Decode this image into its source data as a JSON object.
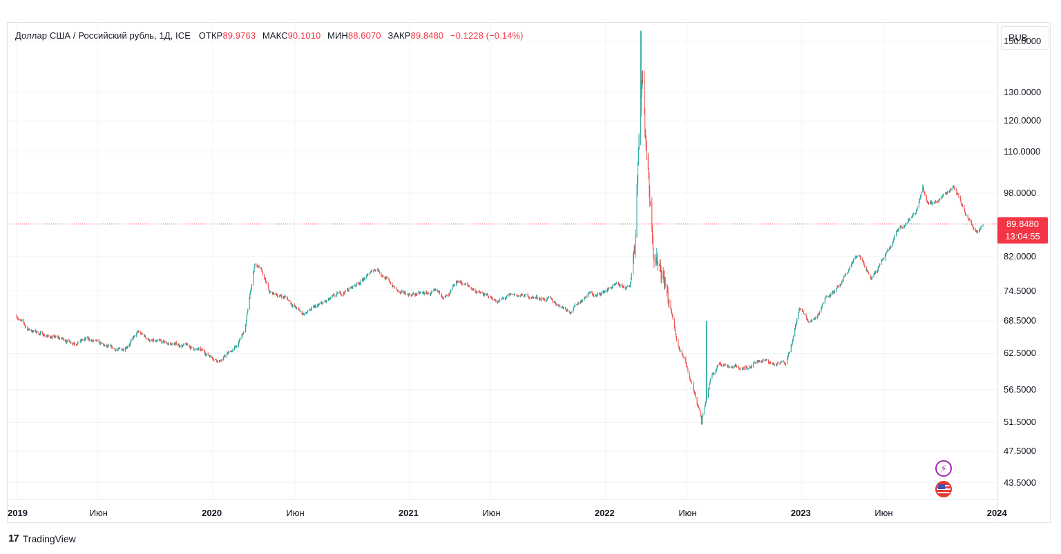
{
  "legend": {
    "symbol": "Доллар США / Российский рубль, 1Д, ICE",
    "open_label": "ОТКР",
    "open": "89.9763",
    "high_label": "МАКС",
    "high": "90.1010",
    "low_label": "МИН",
    "low": "88.6070",
    "close_label": "ЗАКР",
    "close": "89.8480",
    "change": "−0.1228 (−0.14%)"
  },
  "currency_button": "RUB",
  "last_price": {
    "value": "89.8480",
    "countdown": "13:04:55"
  },
  "branding": {
    "name": "TradingView"
  },
  "icons": {
    "flash": "lightning-icon",
    "flag": "us-flag-icon"
  },
  "colors": {
    "up": "#26a69a",
    "down": "#ef5350",
    "price_line": "#f23645",
    "grid": "#f0f3fa",
    "accent": "#9c27b0"
  },
  "chart_data": {
    "type": "candlestick",
    "title": "Доллар США / Российский рубль, 1Д, ICE",
    "y_scale": "log",
    "ylim": [
      41.5,
      158
    ],
    "y_ticks": [
      "150.0000",
      "130.0000",
      "120.0000",
      "110.0000",
      "98.0000",
      "82.0000",
      "74.5000",
      "68.5000",
      "62.5000",
      "56.5000",
      "51.5000",
      "47.5000",
      "43.5000"
    ],
    "x_ticks": [
      "2019",
      "Июн",
      "2020",
      "Июн",
      "2021",
      "Июн",
      "2022",
      "Июн",
      "2023",
      "Июн",
      "2024"
    ],
    "x_range": [
      "2018-12-15",
      "2023-12-31"
    ],
    "grid": true,
    "close_path": [
      [
        "2019-01-01",
        69.5
      ],
      [
        "2019-01-20",
        67.0
      ],
      [
        "2019-03-01",
        65.6
      ],
      [
        "2019-04-15",
        64.6
      ],
      [
        "2019-05-15",
        65.0
      ],
      [
        "2019-06-20",
        63.4
      ],
      [
        "2019-07-15",
        63.0
      ],
      [
        "2019-08-15",
        66.2
      ],
      [
        "2019-09-15",
        64.4
      ],
      [
        "2019-10-15",
        64.2
      ],
      [
        "2019-11-15",
        63.8
      ],
      [
        "2019-12-15",
        62.7
      ],
      [
        "2020-01-15",
        61.3
      ],
      [
        "2020-02-15",
        63.8
      ],
      [
        "2020-03-01",
        66.8
      ],
      [
        "2020-03-19",
        80.5
      ],
      [
        "2020-04-01",
        78.5
      ],
      [
        "2020-04-15",
        74.0
      ],
      [
        "2020-05-15",
        73.2
      ],
      [
        "2020-06-15",
        69.8
      ],
      [
        "2020-07-15",
        71.3
      ],
      [
        "2020-08-15",
        73.2
      ],
      [
        "2020-09-15",
        75.2
      ],
      [
        "2020-10-15",
        77.7
      ],
      [
        "2020-11-01",
        79.5
      ],
      [
        "2020-11-15",
        77.5
      ],
      [
        "2020-12-15",
        73.8
      ],
      [
        "2021-01-15",
        73.8
      ],
      [
        "2021-02-15",
        74.0
      ],
      [
        "2021-03-15",
        73.2
      ],
      [
        "2021-04-01",
        76.5
      ],
      [
        "2021-04-15",
        75.8
      ],
      [
        "2021-05-15",
        73.8
      ],
      [
        "2021-06-15",
        72.4
      ],
      [
        "2021-07-15",
        73.6
      ],
      [
        "2021-08-15",
        73.3
      ],
      [
        "2021-09-15",
        72.8
      ],
      [
        "2021-10-15",
        71.2
      ],
      [
        "2021-10-28",
        70.5
      ],
      [
        "2021-11-15",
        72.5
      ],
      [
        "2021-12-01",
        74.0
      ],
      [
        "2021-12-15",
        73.4
      ],
      [
        "2022-01-15",
        75.5
      ],
      [
        "2022-02-15",
        75.0
      ],
      [
        "2022-02-24",
        85.0
      ],
      [
        "2022-03-01",
        105.0
      ],
      [
        "2022-03-10",
        138.0
      ],
      [
        "2022-03-15",
        118.0
      ],
      [
        "2022-03-25",
        96.0
      ],
      [
        "2022-04-01",
        84.0
      ],
      [
        "2022-04-15",
        80.0
      ],
      [
        "2022-05-01",
        71.0
      ],
      [
        "2022-05-15",
        64.0
      ],
      [
        "2022-06-01",
        60.0
      ],
      [
        "2022-06-15",
        56.0
      ],
      [
        "2022-06-29",
        52.0
      ],
      [
        "2022-07-15",
        58.0
      ],
      [
        "2022-08-01",
        61.0
      ],
      [
        "2022-08-15",
        60.5
      ],
      [
        "2022-09-01",
        60.2
      ],
      [
        "2022-09-15",
        59.8
      ],
      [
        "2022-10-01",
        60.8
      ],
      [
        "2022-10-15",
        61.5
      ],
      [
        "2022-11-01",
        61.0
      ],
      [
        "2022-11-15",
        60.5
      ],
      [
        "2022-12-01",
        61.0
      ],
      [
        "2022-12-15",
        65.0
      ],
      [
        "2022-12-28",
        71.0
      ],
      [
        "2023-01-15",
        68.0
      ],
      [
        "2023-02-01",
        70.0
      ],
      [
        "2023-02-15",
        73.5
      ],
      [
        "2023-03-15",
        75.5
      ],
      [
        "2023-04-10",
        82.0
      ],
      [
        "2023-04-20",
        81.5
      ],
      [
        "2023-05-10",
        77.0
      ],
      [
        "2023-05-25",
        80.0
      ],
      [
        "2023-06-15",
        84.0
      ],
      [
        "2023-07-01",
        89.0
      ],
      [
        "2023-07-15",
        90.5
      ],
      [
        "2023-08-01",
        92.5
      ],
      [
        "2023-08-14",
        100.0
      ],
      [
        "2023-08-25",
        94.5
      ],
      [
        "2023-09-15",
        96.5
      ],
      [
        "2023-10-01",
        98.5
      ],
      [
        "2023-10-10",
        100.5
      ],
      [
        "2023-10-20",
        97.0
      ],
      [
        "2023-11-01",
        93.0
      ],
      [
        "2023-11-15",
        89.0
      ],
      [
        "2023-11-25",
        88.0
      ],
      [
        "2023-12-04",
        89.85
      ]
    ],
    "spikes": [
      {
        "date": "2022-03-07",
        "high": 154.5
      },
      {
        "date": "2022-06-29",
        "low": 51.2
      },
      {
        "date": "2022-07-08",
        "high": 68.5
      }
    ],
    "last": 89.848
  }
}
